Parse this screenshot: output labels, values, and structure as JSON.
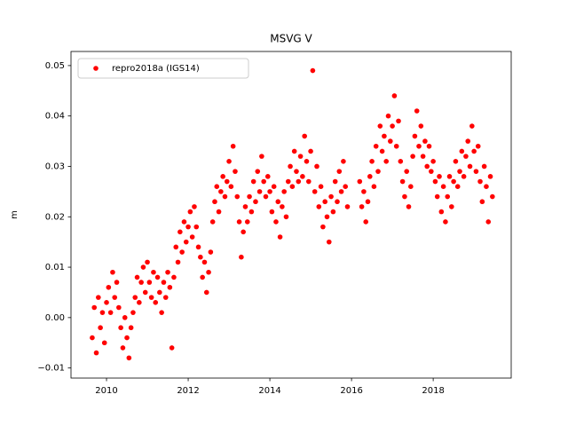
{
  "chart_data": {
    "type": "scatter",
    "title": "MSVG V",
    "ylabel": "m",
    "xlim": [
      2009.13,
      2019.91
    ],
    "ylim": [
      -0.012,
      0.0528
    ],
    "xticks": [
      2010,
      2012,
      2014,
      2016,
      2018
    ],
    "yticks": [
      {
        "value": -0.01,
        "label": "−0.01"
      },
      {
        "value": 0,
        "label": "0.00"
      },
      0.01,
      0.02,
      0.03,
      0.04,
      0.05
    ],
    "grid": false,
    "legend": "upper left",
    "series": [
      {
        "name": "repro2018a (IGS14)",
        "color": "#ff0000",
        "x": [
          2009.65,
          2009.7,
          2009.75,
          2009.8,
          2009.85,
          2009.9,
          2009.95,
          2010.0,
          2010.05,
          2010.1,
          2010.15,
          2010.2,
          2010.25,
          2010.3,
          2010.35,
          2010.4,
          2010.45,
          2010.5,
          2010.55,
          2010.6,
          2010.65,
          2010.7,
          2010.75,
          2010.8,
          2010.85,
          2010.9,
          2010.95,
          2011.0,
          2011.05,
          2011.1,
          2011.15,
          2011.2,
          2011.25,
          2011.3,
          2011.35,
          2011.4,
          2011.45,
          2011.5,
          2011.55,
          2011.6,
          2011.65,
          2011.7,
          2011.75,
          2011.8,
          2011.85,
          2011.9,
          2011.95,
          2012.0,
          2012.05,
          2012.1,
          2012.15,
          2012.2,
          2012.25,
          2012.3,
          2012.35,
          2012.4,
          2012.45,
          2012.5,
          2012.55,
          2012.6,
          2012.65,
          2012.7,
          2012.75,
          2012.8,
          2012.85,
          2012.9,
          2012.95,
          2013.0,
          2013.05,
          2013.1,
          2013.15,
          2013.2,
          2013.25,
          2013.3,
          2013.35,
          2013.4,
          2013.45,
          2013.5,
          2013.55,
          2013.6,
          2013.65,
          2013.7,
          2013.75,
          2013.8,
          2013.85,
          2013.9,
          2013.95,
          2014.0,
          2014.05,
          2014.1,
          2014.15,
          2014.2,
          2014.25,
          2014.3,
          2014.35,
          2014.4,
          2014.45,
          2014.5,
          2014.55,
          2014.6,
          2014.65,
          2014.7,
          2014.75,
          2014.8,
          2014.85,
          2014.9,
          2014.95,
          2015.0,
          2015.05,
          2015.1,
          2015.15,
          2015.2,
          2015.25,
          2015.3,
          2015.35,
          2015.4,
          2015.45,
          2015.5,
          2015.55,
          2015.6,
          2015.65,
          2015.7,
          2015.75,
          2015.8,
          2015.85,
          2015.9,
          2016.2,
          2016.25,
          2016.3,
          2016.35,
          2016.4,
          2016.45,
          2016.5,
          2016.55,
          2016.6,
          2016.65,
          2016.7,
          2016.75,
          2016.8,
          2016.85,
          2016.9,
          2016.95,
          2017.0,
          2017.05,
          2017.1,
          2017.15,
          2017.2,
          2017.25,
          2017.3,
          2017.35,
          2017.4,
          2017.45,
          2017.5,
          2017.55,
          2017.6,
          2017.65,
          2017.7,
          2017.75,
          2017.8,
          2017.85,
          2017.9,
          2017.95,
          2018.0,
          2018.05,
          2018.1,
          2018.15,
          2018.2,
          2018.25,
          2018.3,
          2018.35,
          2018.4,
          2018.45,
          2018.5,
          2018.55,
          2018.6,
          2018.65,
          2018.7,
          2018.75,
          2018.8,
          2018.85,
          2018.9,
          2018.95,
          2019.0,
          2019.05,
          2019.1,
          2019.15,
          2019.2,
          2019.25,
          2019.3,
          2019.35,
          2019.4,
          2019.45
        ],
        "values": [
          -0.004,
          0.002,
          -0.007,
          0.004,
          -0.002,
          0.001,
          -0.005,
          0.003,
          0.006,
          0.001,
          0.009,
          0.004,
          0.007,
          0.002,
          -0.002,
          -0.006,
          0.0,
          -0.004,
          -0.008,
          -0.002,
          0.001,
          0.004,
          0.008,
          0.003,
          0.007,
          0.01,
          0.005,
          0.011,
          0.007,
          0.004,
          0.009,
          0.003,
          0.008,
          0.005,
          0.001,
          0.007,
          0.004,
          0.009,
          0.006,
          -0.006,
          0.008,
          0.014,
          0.011,
          0.017,
          0.013,
          0.019,
          0.015,
          0.018,
          0.021,
          0.016,
          0.022,
          0.018,
          0.014,
          0.012,
          0.008,
          0.011,
          0.005,
          0.009,
          0.013,
          0.019,
          0.023,
          0.026,
          0.021,
          0.025,
          0.028,
          0.024,
          0.027,
          0.031,
          0.026,
          0.034,
          0.029,
          0.024,
          0.019,
          0.012,
          0.017,
          0.022,
          0.019,
          0.024,
          0.021,
          0.027,
          0.023,
          0.029,
          0.025,
          0.032,
          0.027,
          0.024,
          0.028,
          0.025,
          0.021,
          0.026,
          0.019,
          0.023,
          0.016,
          0.022,
          0.025,
          0.02,
          0.027,
          0.03,
          0.026,
          0.033,
          0.029,
          0.027,
          0.032,
          0.028,
          0.036,
          0.031,
          0.027,
          0.033,
          0.049,
          0.025,
          0.03,
          0.022,
          0.026,
          0.018,
          0.023,
          0.02,
          0.015,
          0.024,
          0.021,
          0.027,
          0.023,
          0.029,
          0.025,
          0.031,
          0.026,
          0.022,
          0.027,
          0.022,
          0.025,
          0.019,
          0.023,
          0.028,
          0.031,
          0.026,
          0.034,
          0.029,
          0.038,
          0.033,
          0.036,
          0.031,
          0.04,
          0.035,
          0.038,
          0.044,
          0.034,
          0.039,
          0.031,
          0.027,
          0.024,
          0.029,
          0.022,
          0.026,
          0.032,
          0.036,
          0.041,
          0.034,
          0.038,
          0.032,
          0.035,
          0.03,
          0.034,
          0.029,
          0.031,
          0.027,
          0.024,
          0.028,
          0.021,
          0.026,
          0.019,
          0.024,
          0.028,
          0.022,
          0.027,
          0.031,
          0.026,
          0.029,
          0.033,
          0.028,
          0.032,
          0.035,
          0.03,
          0.038,
          0.033,
          0.029,
          0.034,
          0.027,
          0.023,
          0.03,
          0.026,
          0.019,
          0.028,
          0.024
        ]
      }
    ]
  }
}
